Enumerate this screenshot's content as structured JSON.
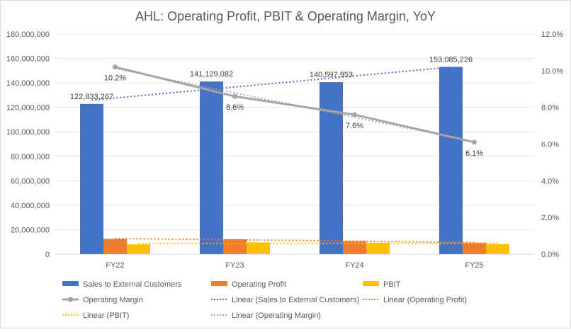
{
  "chart_data": {
    "type": "bar",
    "title": "AHL: Operating Profit, PBIT & Operating Margin, YoY",
    "categories": [
      "FY22",
      "FY23",
      "FY24",
      "FY25"
    ],
    "y_left": {
      "min": 0,
      "max": 180000000,
      "step": 20000000,
      "tick_labels": [
        "0",
        "20,000,000",
        "40,000,000",
        "60,000,000",
        "80,000,000",
        "100,000,000",
        "120,000,000",
        "140,000,000",
        "160,000,000",
        "180,000,000"
      ]
    },
    "y_right": {
      "min": 0,
      "max": 12,
      "step": 2,
      "tick_labels": [
        "0.0%",
        "2.0%",
        "4.0%",
        "6.0%",
        "8.0%",
        "10.0%",
        "12.0%"
      ]
    },
    "grid": true,
    "series": [
      {
        "name": "Sales to External Customers",
        "type": "bar",
        "axis": "left",
        "color": "#4472C4",
        "values": [
          122833267,
          141129082,
          140597953,
          153085226
        ],
        "labels": [
          "122,833,267",
          "141,129,082",
          "140,597,953",
          "153,085,226"
        ]
      },
      {
        "name": "Operating Profit",
        "type": "bar",
        "axis": "left",
        "color": "#ED7D31",
        "values": [
          12500000,
          12150000,
          10700000,
          9350000
        ]
      },
      {
        "name": "PBIT",
        "type": "bar",
        "axis": "left",
        "color": "#FFC000",
        "values": [
          8000000,
          9600000,
          9350000,
          8200000
        ]
      },
      {
        "name": "Operating Margin",
        "type": "line",
        "axis": "right",
        "color": "#A5A5A5",
        "values": [
          10.2,
          8.6,
          7.6,
          6.1
        ],
        "labels": [
          "10.2%",
          "8.6%",
          "7.6%",
          "6.1%"
        ]
      }
    ],
    "trendlines": [
      {
        "name": "Linear (Sales to External Customers)",
        "series_index": 0,
        "color": "#4472C4"
      },
      {
        "name": "Linear (Operating Profit)",
        "series_index": 1,
        "color": "#ED7D31"
      },
      {
        "name": "Linear (PBIT)",
        "series_index": 2,
        "color": "#FFC000"
      },
      {
        "name": "Linear (Operating Margin)",
        "series_index": 3,
        "color": "#A5A5A5"
      }
    ],
    "legend": {
      "position": "bottom",
      "entries": [
        {
          "label": "Sales to External Customers",
          "kind": "bar",
          "color": "#4472C4"
        },
        {
          "label": "Operating Profit",
          "kind": "bar",
          "color": "#ED7D31"
        },
        {
          "label": "PBIT",
          "kind": "bar",
          "color": "#FFC000"
        },
        {
          "label": "Operating Margin",
          "kind": "line-marker",
          "color": "#A5A5A5"
        },
        {
          "label": "Linear (Sales to External Customers)",
          "kind": "dotted",
          "color": "#4472C4"
        },
        {
          "label": "Linear (Operating Profit)",
          "kind": "dotted",
          "color": "#ED7D31"
        },
        {
          "label": "Linear (PBIT)",
          "kind": "dotted",
          "color": "#FFC000"
        },
        {
          "label": "Linear (Operating Margin)",
          "kind": "dotted",
          "color": "#A5A5A5"
        }
      ]
    }
  }
}
